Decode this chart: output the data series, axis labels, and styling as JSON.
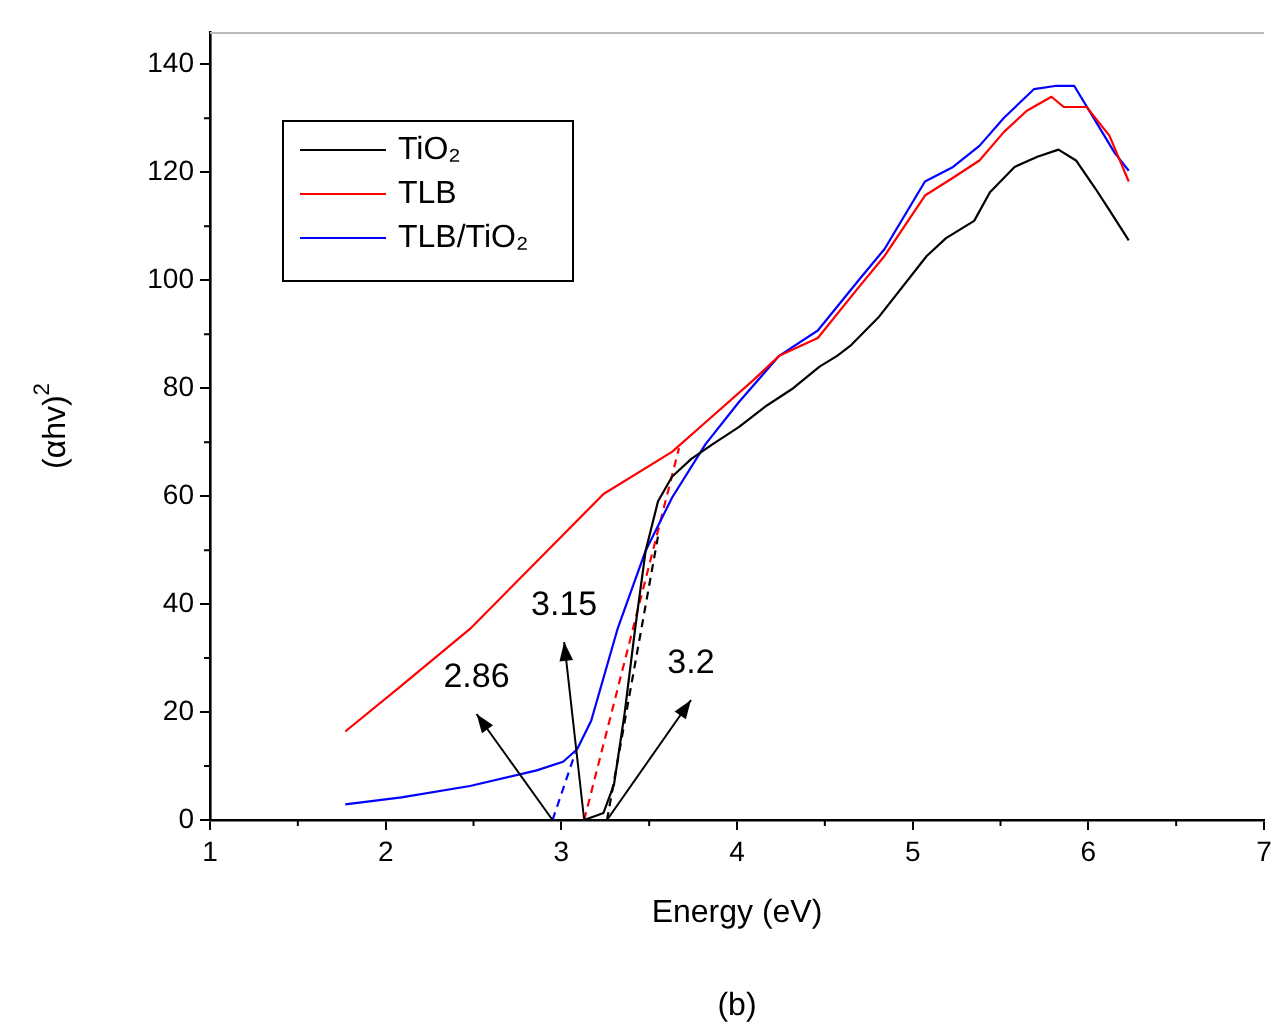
{
  "chart_data": {
    "type": "line",
    "xlabel": "Energy (eV)",
    "ylabel": "(αhv)$^{2}$",
    "xlim": [
      1,
      7
    ],
    "xticks": [
      1,
      2,
      3,
      4,
      5,
      6,
      7
    ],
    "ylim": [
      0,
      146
    ],
    "yticks": [
      0,
      20,
      40,
      60,
      80,
      100,
      120,
      140
    ],
    "grid": false,
    "legend": "top left",
    "marker": "none",
    "series": [
      {
        "name": "TiO₂",
        "color": "#000000",
        "line_style": "solid",
        "x": [
          3.13,
          3.24,
          3.3,
          3.36,
          3.42,
          3.48,
          3.55,
          3.63,
          3.74,
          3.86,
          4.01,
          4.17,
          4.32,
          4.47,
          4.57,
          4.65,
          4.81,
          5.08,
          5.19,
          5.35,
          5.44,
          5.58,
          5.71,
          5.83,
          5.93,
          6.04,
          6.12,
          6.23
        ],
        "values": [
          0,
          1.3,
          6.6,
          19.7,
          35.4,
          49.9,
          59,
          63.6,
          66.9,
          69.6,
          72.8,
          76.8,
          80,
          84,
          86,
          88,
          93.3,
          104.5,
          107.8,
          111,
          116.3,
          121,
          122.9,
          124.2,
          122.2,
          117,
          113,
          107.4
        ]
      },
      {
        "name": "TLB",
        "color": "#ff0000",
        "line_style": "solid",
        "x": [
          1.77,
          2.09,
          2.48,
          2.86,
          3.24,
          3.63,
          3.86,
          4.09,
          4.24,
          4.46,
          4.69,
          4.84,
          5.07,
          5.23,
          5.38,
          5.52,
          5.65,
          5.79,
          5.86,
          5.99,
          6.12,
          6.23
        ],
        "values": [
          16.4,
          24.9,
          35.4,
          47.9,
          60.4,
          68.2,
          74.8,
          81.4,
          86,
          89.3,
          98.6,
          104.5,
          115.7,
          119,
          122.2,
          127.5,
          131.4,
          134,
          132.1,
          132.1,
          126.8,
          118.3
        ]
      },
      {
        "name": "TLB/TiO₂",
        "color": "#0000ff",
        "line_style": "solid",
        "x": [
          1.77,
          2.09,
          2.48,
          2.86,
          3.01,
          3.09,
          3.17,
          3.32,
          3.48,
          3.63,
          3.82,
          4.01,
          4.24,
          4.46,
          4.69,
          4.84,
          5.07,
          5.23,
          5.38,
          5.52,
          5.69,
          5.81,
          5.92,
          6.03,
          6.15,
          6.23
        ],
        "values": [
          2.9,
          4.2,
          6.3,
          9.2,
          10.8,
          13.1,
          18.4,
          35.4,
          49.9,
          59.7,
          69.6,
          77.4,
          86,
          90.7,
          99.9,
          105.8,
          118.3,
          121,
          124.9,
          130.1,
          135.4,
          136,
          136,
          130.1,
          123.6,
          120.3
        ]
      },
      {
        "color": "#0000ff",
        "line_style": "dashed",
        "x": [
          2.95,
          3.08
        ],
        "values": [
          0,
          12.5
        ]
      },
      {
        "color": "#ff0000",
        "line_style": "dashed",
        "x": [
          3.13,
          3.67
        ],
        "values": [
          0,
          68.9
        ]
      },
      {
        "color": "#000000",
        "line_style": "dashed",
        "x": [
          3.26,
          3.55
        ],
        "values": [
          0,
          52.5
        ]
      }
    ],
    "annotations": [
      {
        "text": "2.86",
        "x": 2.95,
        "y": 0
      },
      {
        "text": "3.15",
        "x": 3.13,
        "y": 0
      },
      {
        "text": "3.2",
        "x": 3.26,
        "y": 0
      },
      "(b)"
    ]
  }
}
